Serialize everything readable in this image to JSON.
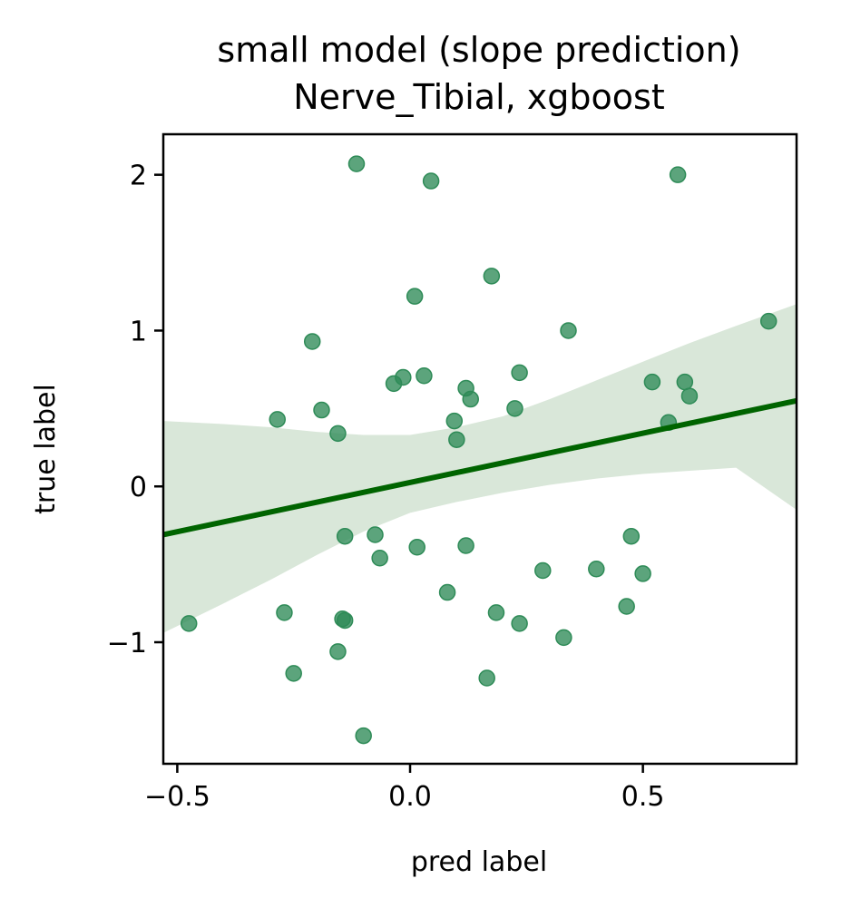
{
  "chart_data": {
    "type": "scatter",
    "title_line1": "small model (slope prediction)",
    "title_line2": "Nerve_Tibial, xgboost",
    "xlabel": "pred label",
    "ylabel": "true label",
    "xlim": [
      -0.53,
      0.83
    ],
    "ylim": [
      -1.78,
      2.26
    ],
    "xticks": [
      {
        "value": -0.5,
        "label": "−0.5"
      },
      {
        "value": 0.0,
        "label": "0.0"
      },
      {
        "value": 0.5,
        "label": "0.5"
      }
    ],
    "yticks": [
      {
        "value": 2,
        "label": "2"
      },
      {
        "value": 1,
        "label": "1"
      },
      {
        "value": 0,
        "label": "0"
      },
      {
        "value": -1,
        "label": "−1"
      }
    ],
    "grid": false,
    "point_color": "#2e8b57",
    "line_color": "#006400",
    "band_color": "#d9e7d9",
    "regression": {
      "x": [
        -0.53,
        0.83
      ],
      "y": [
        -0.31,
        0.55
      ]
    },
    "confidence_band": {
      "x": [
        -0.53,
        -0.4,
        -0.3,
        -0.2,
        -0.1,
        0.0,
        0.1,
        0.2,
        0.3,
        0.4,
        0.5,
        0.6,
        0.7,
        0.83
      ],
      "upper": [
        0.42,
        0.4,
        0.38,
        0.35,
        0.33,
        0.33,
        0.38,
        0.45,
        0.56,
        0.68,
        0.8,
        0.92,
        1.03,
        1.17
      ],
      "lower": [
        -0.94,
        -0.75,
        -0.6,
        -0.44,
        -0.29,
        -0.17,
        -0.1,
        -0.04,
        0.01,
        0.05,
        0.08,
        0.1,
        0.12,
        -0.15
      ]
    },
    "points": [
      {
        "x": -0.475,
        "y": -0.88
      },
      {
        "x": -0.285,
        "y": 0.43
      },
      {
        "x": -0.27,
        "y": -0.81
      },
      {
        "x": -0.25,
        "y": -1.2
      },
      {
        "x": -0.21,
        "y": 0.93
      },
      {
        "x": -0.19,
        "y": 0.49
      },
      {
        "x": -0.155,
        "y": 0.34
      },
      {
        "x": -0.155,
        "y": -1.06
      },
      {
        "x": -0.145,
        "y": -0.85
      },
      {
        "x": -0.14,
        "y": -0.86
      },
      {
        "x": -0.14,
        "y": -0.32
      },
      {
        "x": -0.115,
        "y": 2.07
      },
      {
        "x": -0.1,
        "y": -1.6
      },
      {
        "x": -0.075,
        "y": -0.31
      },
      {
        "x": -0.065,
        "y": -0.46
      },
      {
        "x": -0.035,
        "y": 0.66
      },
      {
        "x": -0.015,
        "y": 0.7
      },
      {
        "x": 0.01,
        "y": 1.22
      },
      {
        "x": 0.015,
        "y": -0.39
      },
      {
        "x": 0.03,
        "y": 0.71
      },
      {
        "x": 0.045,
        "y": 1.96
      },
      {
        "x": 0.08,
        "y": -0.68
      },
      {
        "x": 0.095,
        "y": 0.42
      },
      {
        "x": 0.1,
        "y": 0.3
      },
      {
        "x": 0.12,
        "y": 0.63
      },
      {
        "x": 0.12,
        "y": -0.38
      },
      {
        "x": 0.13,
        "y": 0.56
      },
      {
        "x": 0.165,
        "y": -1.23
      },
      {
        "x": 0.175,
        "y": 1.35
      },
      {
        "x": 0.185,
        "y": -0.81
      },
      {
        "x": 0.225,
        "y": 0.5
      },
      {
        "x": 0.235,
        "y": 0.73
      },
      {
        "x": 0.235,
        "y": -0.88
      },
      {
        "x": 0.285,
        "y": -0.54
      },
      {
        "x": 0.33,
        "y": -0.97
      },
      {
        "x": 0.34,
        "y": 1.0
      },
      {
        "x": 0.4,
        "y": -0.53
      },
      {
        "x": 0.465,
        "y": -0.77
      },
      {
        "x": 0.475,
        "y": -0.32
      },
      {
        "x": 0.5,
        "y": -0.56
      },
      {
        "x": 0.52,
        "y": 0.67
      },
      {
        "x": 0.555,
        "y": 0.41
      },
      {
        "x": 0.575,
        "y": 2.0
      },
      {
        "x": 0.59,
        "y": 0.67
      },
      {
        "x": 0.6,
        "y": 0.58
      },
      {
        "x": 0.77,
        "y": 1.06
      }
    ]
  }
}
